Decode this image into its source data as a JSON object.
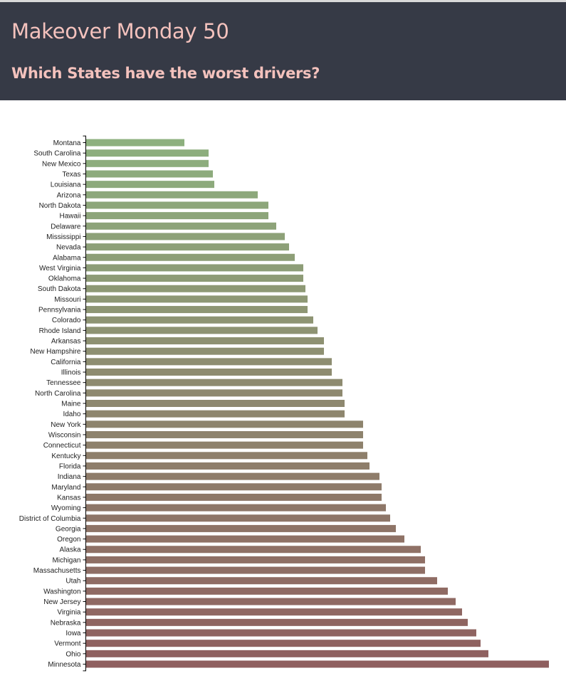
{
  "header": {
    "title": "Makeover Monday 50",
    "subtitle": "Which States have the worst drivers?"
  },
  "colors": {
    "header_bg": "#363a46",
    "header_text": "#f4c2bd",
    "bar_start": "#8db07e",
    "bar_end": "#8f5f5f"
  },
  "chart_data": {
    "type": "bar",
    "orientation": "horizontal",
    "categories": [
      "Montana",
      "South Carolina",
      "New Mexico",
      "Texas",
      "Louisiana",
      "Arizona",
      "North Dakota",
      "Hawaii",
      "Delaware",
      "Mississippi",
      "Nevada",
      "Alabama",
      "West Virginia",
      "Oklahoma",
      "South Dakota",
      "Missouri",
      "Pennsylvania",
      "Colorado",
      "Rhode Island",
      "Arkansas",
      "New Hampshire",
      "California",
      "Illinois",
      "Tennessee",
      "North Carolina",
      "Maine",
      "Idaho",
      "New York",
      "Wisconsin",
      "Connecticut",
      "Kentucky",
      "Florida",
      "Indiana",
      "Maryland",
      "Kansas",
      "Wyoming",
      "District of Columbia",
      "Georgia",
      "Oregon",
      "Alaska",
      "Michigan",
      "Massachusetts",
      "Utah",
      "Washington",
      "New Jersey",
      "Virginia",
      "Nebraska",
      "Iowa",
      "Vermont",
      "Ohio",
      "Minnesota"
    ],
    "values": [
      138,
      172,
      172,
      178,
      180,
      241,
      256,
      256,
      267,
      279,
      285,
      293,
      305,
      305,
      308,
      311,
      311,
      319,
      325,
      334,
      334,
      345,
      345,
      360,
      360,
      363,
      363,
      389,
      389,
      389,
      395,
      398,
      412,
      415,
      415,
      421,
      427,
      435,
      447,
      470,
      476,
      476,
      493,
      508,
      519,
      528,
      536,
      548,
      554,
      565,
      650
    ],
    "title": "",
    "xlabel": "",
    "ylabel": "",
    "xlim": [
      0,
      650
    ],
    "grid": false,
    "legend": "none"
  }
}
